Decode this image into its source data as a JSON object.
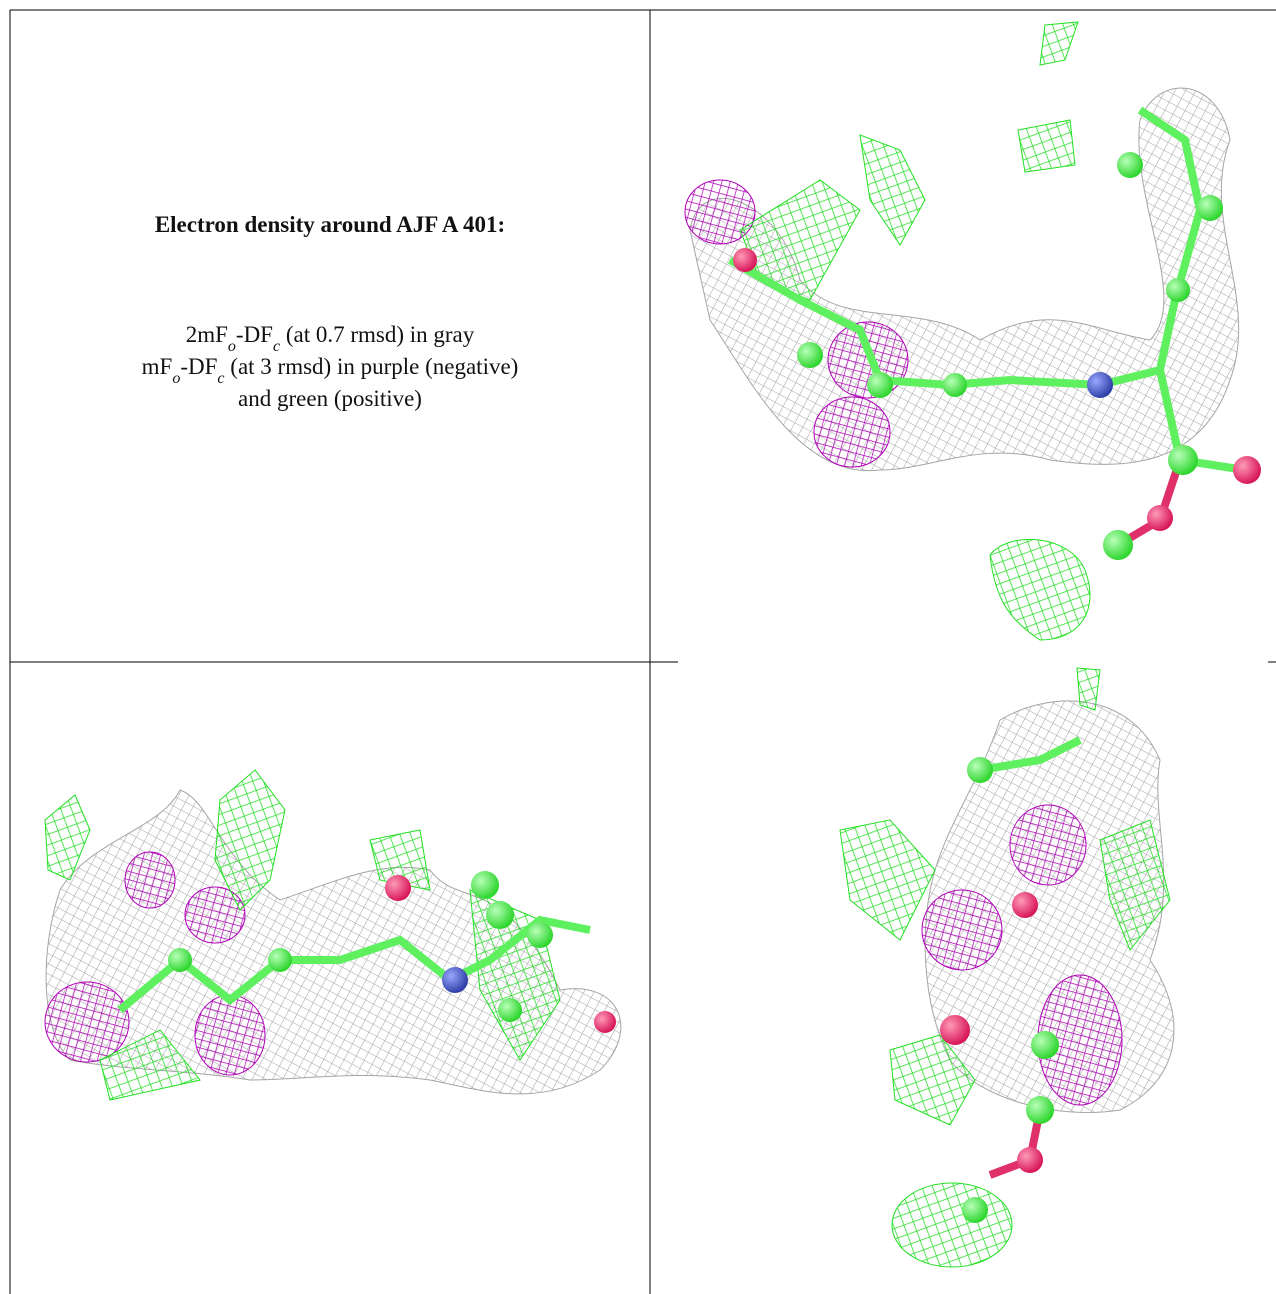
{
  "title": "Electron density around AJF A 401:",
  "legend": {
    "lines": [
      [
        "2mF",
        "o",
        "-DF",
        "c",
        " (at 0.7 rmsd) in gray"
      ],
      [
        "mF",
        "o",
        "-DF",
        "c",
        " (at 3 rmsd) in purple (negative)"
      ],
      [
        "and green (positive)"
      ]
    ]
  }
}
